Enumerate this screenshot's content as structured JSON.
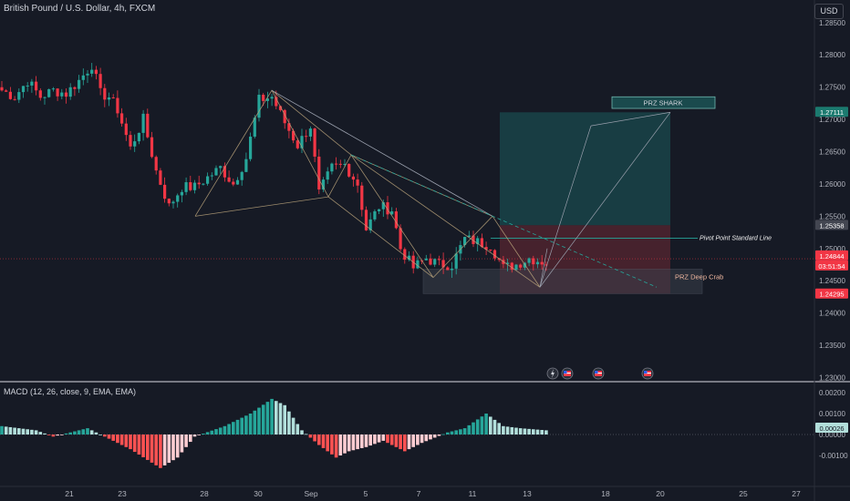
{
  "header": {
    "symbol_title": "British Pound / U.S. Dollar, 4h, FXCM",
    "currency_button": "USD"
  },
  "price_axis": {
    "ticks": [
      "1.28500",
      "1.28000",
      "1.27500",
      "1.27000",
      "1.26500",
      "1.26000",
      "1.25500",
      "1.25000",
      "1.24500",
      "1.24000",
      "1.23500",
      "1.23000"
    ],
    "tags": [
      {
        "label": "1.27111",
        "color": "#1b7a6f"
      },
      {
        "label": "1.25358",
        "color": "#434651"
      },
      {
        "label": "1.24844",
        "color": "#f23645"
      },
      {
        "label": "03:51:54",
        "color": "#f23645"
      },
      {
        "label": "1.24295",
        "color": "#f23645"
      }
    ]
  },
  "x_axis": {
    "ticks": [
      "21",
      "23",
      "28",
      "30",
      "Sep",
      "5",
      "7",
      "11",
      "13",
      "18",
      "20",
      "25",
      "27"
    ]
  },
  "annotations": {
    "prz_shark": "PRZ SHARK",
    "pivot_line": "Pivot Point Standard Line",
    "prz_deep_crab": "PRZ Deep Crab"
  },
  "macd": {
    "title": "MACD (12, 26, close, 9, EMA, EMA)",
    "ticks": [
      "0.00200",
      "0.00100",
      "0.00000",
      "-0.00100"
    ],
    "current_tag": "0.00026"
  },
  "event_icons": [
    "lightning-icon",
    "us-flag-icon",
    "us-flag-icon",
    "us-flag-icon"
  ],
  "colors": {
    "background": "#161a25",
    "bull": "#26a69a",
    "bear": "#f23645",
    "pattern_line": "#b9a27a",
    "target_box": "#1a4a4d",
    "stop_box": "#5b2630"
  },
  "chart_data": {
    "type": "candlestick",
    "title": "British Pound / U.S. Dollar, 4h, FXCM",
    "ylim": [
      1.2295,
      1.2885
    ],
    "x_tick_labels": [
      "21",
      "23",
      "28",
      "30",
      "Sep",
      "5",
      "7",
      "11",
      "13",
      "18",
      "20",
      "25",
      "27"
    ],
    "anchor_closes": [
      [
        0,
        1.2745
      ],
      [
        3,
        1.2735
      ],
      [
        6,
        1.276
      ],
      [
        9,
        1.2735
      ],
      [
        12,
        1.2745
      ],
      [
        15,
        1.274
      ],
      [
        18,
        1.276
      ],
      [
        21,
        1.2785
      ],
      [
        23,
        1.274
      ],
      [
        25,
        1.2735
      ],
      [
        27,
        1.2715
      ],
      [
        30,
        1.2655
      ],
      [
        33,
        1.27
      ],
      [
        36,
        1.262
      ],
      [
        39,
        1.2565
      ],
      [
        42,
        1.2595
      ],
      [
        45,
        1.2595
      ],
      [
        48,
        1.261
      ],
      [
        51,
        1.2625
      ],
      [
        54,
        1.26
      ],
      [
        57,
        1.264
      ],
      [
        60,
        1.273
      ],
      [
        63,
        1.2735
      ],
      [
        66,
        1.2695
      ],
      [
        69,
        1.266
      ],
      [
        72,
        1.269
      ],
      [
        74,
        1.2585
      ],
      [
        77,
        1.2625
      ],
      [
        80,
        1.263
      ],
      [
        83,
        1.26
      ],
      [
        85,
        1.253
      ],
      [
        88,
        1.2565
      ],
      [
        91,
        1.256
      ],
      [
        93,
        1.25
      ],
      [
        96,
        1.247
      ],
      [
        99,
        1.2485
      ],
      [
        102,
        1.2475
      ],
      [
        105,
        1.2475
      ],
      [
        108,
        1.2515
      ],
      [
        111,
        1.251
      ],
      [
        114,
        1.2505
      ],
      [
        117,
        1.247
      ],
      [
        120,
        1.2475
      ],
      [
        123,
        1.2485
      ],
      [
        126,
        1.248
      ]
    ],
    "macd_histogram_range": [
      -0.0017,
      0.0018
    ],
    "levels": {
      "prz_shark": 1.2711,
      "pivot_point_standard": 1.2536,
      "current_price": 1.2484,
      "prz_deep_crab": 1.243
    }
  }
}
